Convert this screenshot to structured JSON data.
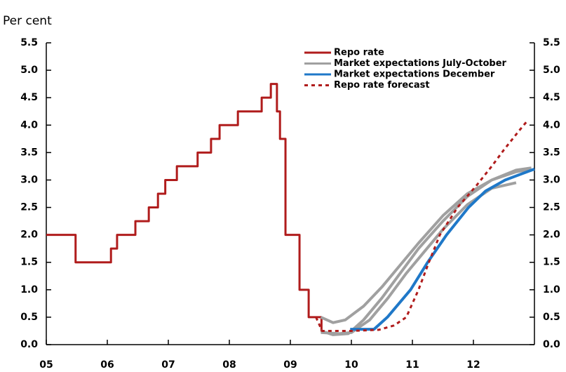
{
  "chart_data": {
    "type": "line",
    "y_label": "Per cent",
    "xlim": [
      2005,
      2013
    ],
    "xticks": [
      {
        "value": 2005,
        "label": "05"
      },
      {
        "value": 2006,
        "label": "06"
      },
      {
        "value": 2007,
        "label": "07"
      },
      {
        "value": 2008,
        "label": "08"
      },
      {
        "value": 2009,
        "label": "09"
      },
      {
        "value": 2010,
        "label": "10"
      },
      {
        "value": 2011,
        "label": "11"
      },
      {
        "value": 2012,
        "label": "12"
      }
    ],
    "ylim": [
      0,
      5.5
    ],
    "yticks": [
      {
        "value": 0,
        "label": "0.0"
      },
      0.5,
      {
        "value": 1,
        "label": "1.0"
      },
      1.5,
      {
        "value": 2,
        "label": "2.0"
      },
      2.5,
      {
        "value": 3,
        "label": "3.0"
      },
      3.5,
      {
        "value": 4,
        "label": "4.0"
      },
      4.5,
      {
        "value": 5,
        "label": "5.0"
      },
      5.5
    ],
    "legend": "top-right",
    "series": [
      {
        "name": "Repo rate",
        "color": "#b01c1c",
        "dashed": false,
        "x": [
          2005.0,
          2005.48,
          2005.48,
          2006.06,
          2006.06,
          2006.16,
          2006.16,
          2006.46,
          2006.46,
          2006.68,
          2006.68,
          2006.83,
          2006.83,
          2006.95,
          2006.95,
          2007.14,
          2007.14,
          2007.48,
          2007.48,
          2007.7,
          2007.7,
          2007.84,
          2007.84,
          2008.14,
          2008.14,
          2008.53,
          2008.53,
          2008.68,
          2008.68,
          2008.78,
          2008.78,
          2008.83,
          2008.83,
          2008.92,
          2008.92,
          2009.15,
          2009.15,
          2009.3,
          2009.3,
          2009.51,
          2009.51,
          2009.55
        ],
        "values": [
          2.0,
          2.0,
          1.5,
          1.5,
          1.75,
          1.75,
          2.0,
          2.0,
          2.25,
          2.25,
          2.5,
          2.5,
          2.75,
          2.75,
          3.0,
          3.0,
          3.25,
          3.25,
          3.5,
          3.5,
          3.75,
          3.75,
          4.0,
          4.0,
          4.25,
          4.25,
          4.5,
          4.5,
          4.75,
          4.75,
          4.25,
          4.25,
          3.75,
          3.75,
          2.0,
          2.0,
          1.0,
          1.0,
          0.5,
          0.5,
          0.25,
          0.25
        ]
      },
      {
        "name": "Market expectations July-October",
        "color": "#a0a0a0",
        "dashed": false,
        "x": [
          2009.5,
          2009.7,
          2009.9,
          2010.2,
          2010.5,
          2010.8,
          2011.1,
          2011.5,
          2011.9,
          2012.3,
          2012.7,
          2012.95,
          null,
          2009.5,
          2009.7,
          2009.95,
          2010.2,
          2010.5,
          2010.8,
          2011.1,
          2011.5,
          2011.9,
          2012.3,
          2012.7,
          2012.95,
          null,
          2009.5,
          2009.8,
          2010.0,
          2010.3,
          2010.6,
          2010.9,
          2011.2,
          2011.5,
          2011.9,
          2012.3,
          2012.7
        ],
        "values": [
          0.5,
          0.4,
          0.45,
          0.7,
          1.05,
          1.45,
          1.85,
          2.35,
          2.75,
          3.0,
          3.15,
          3.2,
          null,
          0.25,
          0.18,
          0.2,
          0.45,
          0.85,
          1.3,
          1.75,
          2.25,
          2.7,
          3.0,
          3.18,
          3.22,
          null,
          0.22,
          0.2,
          0.22,
          0.45,
          0.85,
          1.3,
          1.7,
          2.1,
          2.55,
          2.85,
          2.95
        ]
      },
      {
        "name": "Market expectations December",
        "color": "#1f78c8",
        "dashed": false,
        "x": [
          2009.98,
          2010.37,
          2010.59,
          2010.97,
          2011.25,
          2011.56,
          2011.92,
          2012.2,
          2012.52,
          2013.0
        ],
        "values": [
          0.28,
          0.28,
          0.5,
          1.0,
          1.5,
          2.0,
          2.5,
          2.8,
          3.0,
          3.2
        ]
      },
      {
        "name": "Repo rate forecast",
        "color": "#b01c1c",
        "dashed": true,
        "x": [
          2009.42,
          2009.52,
          2010.0,
          2010.45,
          2010.7,
          2010.9,
          2011.1,
          2011.27,
          2011.45,
          2011.74,
          2012.05,
          2012.3,
          2012.5,
          2012.75,
          2012.9
        ],
        "values": [
          0.5,
          0.25,
          0.25,
          0.27,
          0.35,
          0.5,
          1.0,
          1.5,
          2.0,
          2.5,
          2.9,
          3.25,
          3.55,
          3.9,
          4.1
        ]
      }
    ]
  }
}
